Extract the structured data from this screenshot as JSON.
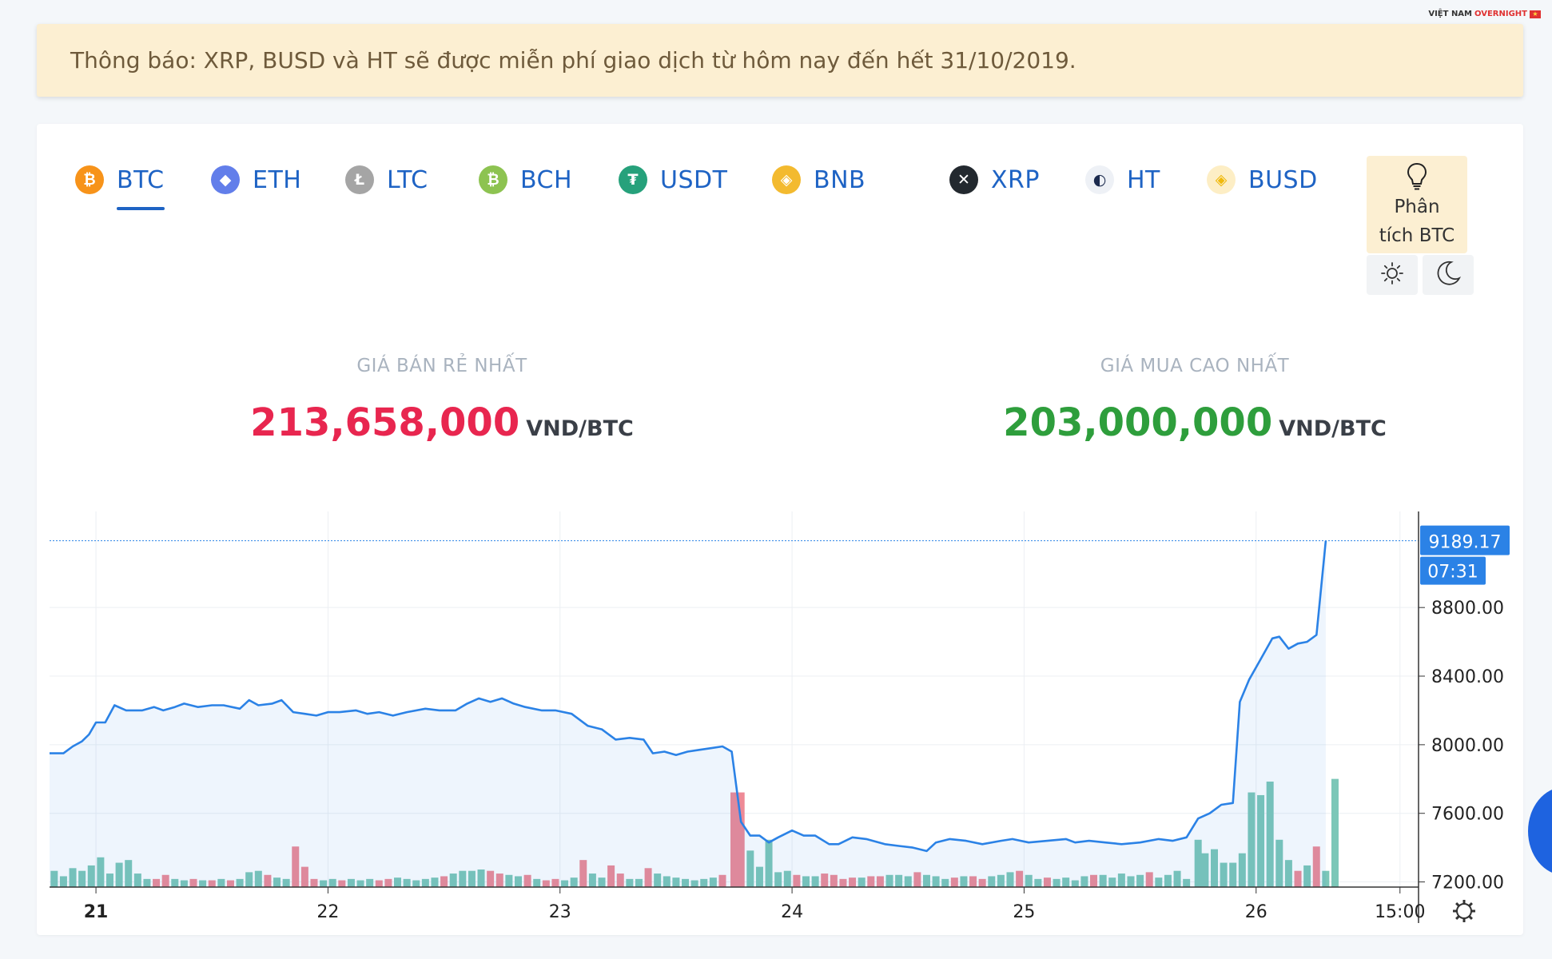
{
  "logo": {
    "text_a": "VIỆT NAM",
    "text_b": "OVERNIGHT",
    "flag": "★"
  },
  "notice": {
    "text": "Thông báo: XRP, BUSD và HT sẽ được miễn phí giao dịch từ hôm nay đến hết 31/10/2019."
  },
  "tabs": [
    {
      "label": "BTC",
      "symbol": "₿",
      "color": "#f7931a",
      "icon": "bitcoin-icon"
    },
    {
      "label": "ETH",
      "symbol": "◆",
      "color": "#627eea",
      "icon": "ethereum-icon"
    },
    {
      "label": "LTC",
      "symbol": "Ł",
      "color": "#a5a5a5",
      "icon": "litecoin-icon"
    },
    {
      "label": "BCH",
      "symbol": "₿",
      "color": "#8dc351",
      "icon": "bitcoin-cash-icon"
    },
    {
      "label": "USDT",
      "symbol": "₮",
      "color": "#26a17b",
      "icon": "tether-icon"
    },
    {
      "label": "BNB",
      "symbol": "◈",
      "color": "#f3ba2f",
      "icon": "binance-icon"
    },
    {
      "label": "XRP",
      "symbol": "✕",
      "color": "#23292f",
      "icon": "ripple-icon"
    },
    {
      "label": "HT",
      "symbol": "◐",
      "color": "#eef1f6",
      "icon": "huobi-token-icon"
    },
    {
      "label": "BUSD",
      "symbol": "◈",
      "color": "#fdeec5",
      "icon": "busd-icon"
    }
  ],
  "active_tab": "BTC",
  "analysis_button": {
    "line1": "Phân",
    "line2": "tích BTC"
  },
  "prices": {
    "sell": {
      "caption": "GIÁ BÁN RẺ NHẤT",
      "value": "213,658,000",
      "unit": "VND/BTC",
      "color": "#e8264f"
    },
    "buy": {
      "caption": "GIÁ MUA CAO NHẤT",
      "value": "203,000,000",
      "unit": "VND/BTC",
      "color": "#2e9e3c"
    }
  },
  "chart_data": {
    "type": "area",
    "x_start": 20.8,
    "x_end": 26.7,
    "xticks": [
      {
        "value": 21,
        "label": "21",
        "bold": true
      },
      {
        "value": 22,
        "label": "22"
      },
      {
        "value": 23,
        "label": "23"
      },
      {
        "value": 24,
        "label": "24"
      },
      {
        "value": 25,
        "label": "25"
      },
      {
        "value": 26,
        "label": "26"
      },
      {
        "value": 26.62,
        "label": "15:00"
      }
    ],
    "yticks": [
      7200,
      7600,
      8000,
      8400,
      8800
    ],
    "ytick_labels": [
      "7200.00",
      "7600.00",
      "8000.00",
      "8400.00",
      "8800.00"
    ],
    "ylim": [
      7170,
      9360
    ],
    "last_price": {
      "label": "9189.17",
      "value": 9189.17,
      "time": "07:31"
    },
    "line_color": "#2b82e6",
    "up_color": "#7cc7b8",
    "down_color": "#ee8a96",
    "price": [
      [
        20.8,
        7950
      ],
      [
        20.86,
        7950
      ],
      [
        20.9,
        7990
      ],
      [
        20.94,
        8020
      ],
      [
        20.97,
        8060
      ],
      [
        21.0,
        8130
      ],
      [
        21.04,
        8130
      ],
      [
        21.08,
        8230
      ],
      [
        21.13,
        8200
      ],
      [
        21.2,
        8200
      ],
      [
        21.25,
        8220
      ],
      [
        21.29,
        8200
      ],
      [
        21.34,
        8220
      ],
      [
        21.38,
        8240
      ],
      [
        21.44,
        8220
      ],
      [
        21.5,
        8230
      ],
      [
        21.55,
        8230
      ],
      [
        21.62,
        8210
      ],
      [
        21.66,
        8260
      ],
      [
        21.7,
        8230
      ],
      [
        21.76,
        8240
      ],
      [
        21.8,
        8260
      ],
      [
        21.85,
        8190
      ],
      [
        21.9,
        8180
      ],
      [
        21.95,
        8170
      ],
      [
        22.0,
        8190
      ],
      [
        22.05,
        8190
      ],
      [
        22.12,
        8200
      ],
      [
        22.17,
        8180
      ],
      [
        22.22,
        8190
      ],
      [
        22.28,
        8170
      ],
      [
        22.34,
        8190
      ],
      [
        22.42,
        8210
      ],
      [
        22.48,
        8200
      ],
      [
        22.55,
        8200
      ],
      [
        22.6,
        8240
      ],
      [
        22.65,
        8270
      ],
      [
        22.7,
        8250
      ],
      [
        22.75,
        8270
      ],
      [
        22.8,
        8240
      ],
      [
        22.85,
        8220
      ],
      [
        22.92,
        8200
      ],
      [
        22.98,
        8200
      ],
      [
        23.05,
        8180
      ],
      [
        23.12,
        8110
      ],
      [
        23.18,
        8090
      ],
      [
        23.24,
        8030
      ],
      [
        23.3,
        8040
      ],
      [
        23.36,
        8030
      ],
      [
        23.4,
        7950
      ],
      [
        23.45,
        7960
      ],
      [
        23.5,
        7940
      ],
      [
        23.55,
        7960
      ],
      [
        23.6,
        7970
      ],
      [
        23.65,
        7980
      ],
      [
        23.7,
        7990
      ],
      [
        23.74,
        7960
      ],
      [
        23.78,
        7550
      ],
      [
        23.82,
        7470
      ],
      [
        23.86,
        7470
      ],
      [
        23.9,
        7430
      ],
      [
        23.94,
        7460
      ],
      [
        24.0,
        7500
      ],
      [
        24.05,
        7470
      ],
      [
        24.1,
        7470
      ],
      [
        24.16,
        7420
      ],
      [
        24.2,
        7420
      ],
      [
        24.26,
        7460
      ],
      [
        24.32,
        7450
      ],
      [
        24.4,
        7420
      ],
      [
        24.46,
        7410
      ],
      [
        24.52,
        7400
      ],
      [
        24.58,
        7380
      ],
      [
        24.62,
        7430
      ],
      [
        24.68,
        7450
      ],
      [
        24.75,
        7440
      ],
      [
        24.82,
        7420
      ],
      [
        24.9,
        7440
      ],
      [
        24.95,
        7450
      ],
      [
        25.02,
        7430
      ],
      [
        25.1,
        7440
      ],
      [
        25.18,
        7450
      ],
      [
        25.22,
        7430
      ],
      [
        25.28,
        7440
      ],
      [
        25.35,
        7430
      ],
      [
        25.42,
        7420
      ],
      [
        25.5,
        7430
      ],
      [
        25.58,
        7450
      ],
      [
        25.64,
        7440
      ],
      [
        25.7,
        7460
      ],
      [
        25.75,
        7570
      ],
      [
        25.8,
        7600
      ],
      [
        25.85,
        7650
      ],
      [
        25.9,
        7660
      ],
      [
        25.93,
        8250
      ],
      [
        25.97,
        8380
      ],
      [
        26.02,
        8500
      ],
      [
        26.07,
        8620
      ],
      [
        26.1,
        8630
      ],
      [
        26.14,
        8560
      ],
      [
        26.18,
        8590
      ],
      [
        26.22,
        8600
      ],
      [
        26.26,
        8640
      ],
      [
        26.3,
        9189.17
      ]
    ],
    "volume": [
      [
        20.82,
        12,
        1
      ],
      [
        20.86,
        8,
        1
      ],
      [
        20.9,
        14,
        1
      ],
      [
        20.94,
        12,
        1
      ],
      [
        20.98,
        16,
        1
      ],
      [
        21.02,
        22,
        1
      ],
      [
        21.06,
        10,
        1
      ],
      [
        21.1,
        18,
        1
      ],
      [
        21.14,
        20,
        1
      ],
      [
        21.18,
        10,
        1
      ],
      [
        21.22,
        6,
        1
      ],
      [
        21.26,
        6,
        0
      ],
      [
        21.3,
        9,
        0
      ],
      [
        21.34,
        6,
        1
      ],
      [
        21.38,
        5,
        1
      ],
      [
        21.42,
        6,
        0
      ],
      [
        21.46,
        5,
        1
      ],
      [
        21.5,
        5,
        0
      ],
      [
        21.54,
        6,
        1
      ],
      [
        21.58,
        5,
        0
      ],
      [
        21.62,
        6,
        1
      ],
      [
        21.66,
        11,
        1
      ],
      [
        21.7,
        12,
        1
      ],
      [
        21.74,
        9,
        0
      ],
      [
        21.78,
        7,
        1
      ],
      [
        21.82,
        6,
        1
      ],
      [
        21.86,
        30,
        0
      ],
      [
        21.9,
        15,
        0
      ],
      [
        21.94,
        6,
        0
      ],
      [
        21.98,
        5,
        1
      ],
      [
        22.02,
        6,
        1
      ],
      [
        22.06,
        5,
        0
      ],
      [
        22.1,
        6,
        1
      ],
      [
        22.14,
        5,
        1
      ],
      [
        22.18,
        6,
        1
      ],
      [
        22.22,
        5,
        0
      ],
      [
        22.26,
        6,
        0
      ],
      [
        22.3,
        7,
        1
      ],
      [
        22.34,
        6,
        1
      ],
      [
        22.38,
        5,
        1
      ],
      [
        22.42,
        6,
        1
      ],
      [
        22.46,
        7,
        1
      ],
      [
        22.5,
        8,
        0
      ],
      [
        22.54,
        10,
        1
      ],
      [
        22.58,
        12,
        1
      ],
      [
        22.62,
        12,
        1
      ],
      [
        22.66,
        13,
        1
      ],
      [
        22.7,
        12,
        0
      ],
      [
        22.74,
        10,
        0
      ],
      [
        22.78,
        9,
        1
      ],
      [
        22.82,
        8,
        1
      ],
      [
        22.86,
        9,
        0
      ],
      [
        22.9,
        6,
        1
      ],
      [
        22.94,
        5,
        0
      ],
      [
        22.98,
        6,
        0
      ],
      [
        23.02,
        5,
        1
      ],
      [
        23.06,
        7,
        1
      ],
      [
        23.1,
        20,
        0
      ],
      [
        23.14,
        10,
        1
      ],
      [
        23.18,
        7,
        1
      ],
      [
        23.22,
        16,
        0
      ],
      [
        23.26,
        10,
        0
      ],
      [
        23.3,
        6,
        1
      ],
      [
        23.34,
        6,
        1
      ],
      [
        23.38,
        14,
        0
      ],
      [
        23.42,
        10,
        1
      ],
      [
        23.46,
        8,
        1
      ],
      [
        23.5,
        7,
        1
      ],
      [
        23.54,
        6,
        1
      ],
      [
        23.58,
        5,
        1
      ],
      [
        23.62,
        6,
        1
      ],
      [
        23.66,
        7,
        1
      ],
      [
        23.7,
        9,
        0
      ],
      [
        23.75,
        70,
        0
      ],
      [
        23.78,
        70,
        0
      ],
      [
        23.82,
        27,
        1
      ],
      [
        23.86,
        15,
        1
      ],
      [
        23.9,
        35,
        1
      ],
      [
        23.94,
        11,
        1
      ],
      [
        23.98,
        12,
        1
      ],
      [
        24.02,
        9,
        0
      ],
      [
        24.06,
        8,
        1
      ],
      [
        24.1,
        8,
        1
      ],
      [
        24.14,
        10,
        0
      ],
      [
        24.18,
        9,
        0
      ],
      [
        24.22,
        6,
        0
      ],
      [
        24.26,
        7,
        0
      ],
      [
        24.3,
        7,
        1
      ],
      [
        24.34,
        8,
        0
      ],
      [
        24.38,
        8,
        0
      ],
      [
        24.42,
        9,
        1
      ],
      [
        24.46,
        9,
        1
      ],
      [
        24.5,
        8,
        1
      ],
      [
        24.54,
        11,
        0
      ],
      [
        24.58,
        9,
        1
      ],
      [
        24.62,
        8,
        1
      ],
      [
        24.66,
        6,
        1
      ],
      [
        24.7,
        7,
        0
      ],
      [
        24.74,
        8,
        1
      ],
      [
        24.78,
        8,
        0
      ],
      [
        24.82,
        6,
        0
      ],
      [
        24.86,
        8,
        1
      ],
      [
        24.9,
        9,
        1
      ],
      [
        24.94,
        11,
        1
      ],
      [
        24.98,
        12,
        0
      ],
      [
        25.02,
        9,
        1
      ],
      [
        25.06,
        6,
        1
      ],
      [
        25.1,
        7,
        0
      ],
      [
        25.14,
        6,
        1
      ],
      [
        25.18,
        7,
        1
      ],
      [
        25.22,
        5,
        1
      ],
      [
        25.26,
        8,
        1
      ],
      [
        25.3,
        9,
        0
      ],
      [
        25.34,
        9,
        1
      ],
      [
        25.38,
        7,
        1
      ],
      [
        25.42,
        10,
        1
      ],
      [
        25.46,
        8,
        1
      ],
      [
        25.5,
        9,
        1
      ],
      [
        25.54,
        11,
        0
      ],
      [
        25.58,
        7,
        1
      ],
      [
        25.62,
        9,
        1
      ],
      [
        25.66,
        12,
        1
      ],
      [
        25.7,
        6,
        1
      ],
      [
        25.75,
        35,
        1
      ],
      [
        25.78,
        25,
        1
      ],
      [
        25.82,
        28,
        1
      ],
      [
        25.86,
        18,
        1
      ],
      [
        25.9,
        18,
        1
      ],
      [
        25.94,
        25,
        1
      ],
      [
        25.98,
        70,
        1
      ],
      [
        26.02,
        68,
        1
      ],
      [
        26.06,
        78,
        1
      ],
      [
        26.1,
        35,
        1
      ],
      [
        26.14,
        20,
        1
      ],
      [
        26.18,
        12,
        0
      ],
      [
        26.22,
        16,
        1
      ],
      [
        26.26,
        30,
        0
      ],
      [
        26.3,
        12,
        1
      ],
      [
        26.34,
        80,
        1
      ]
    ]
  }
}
